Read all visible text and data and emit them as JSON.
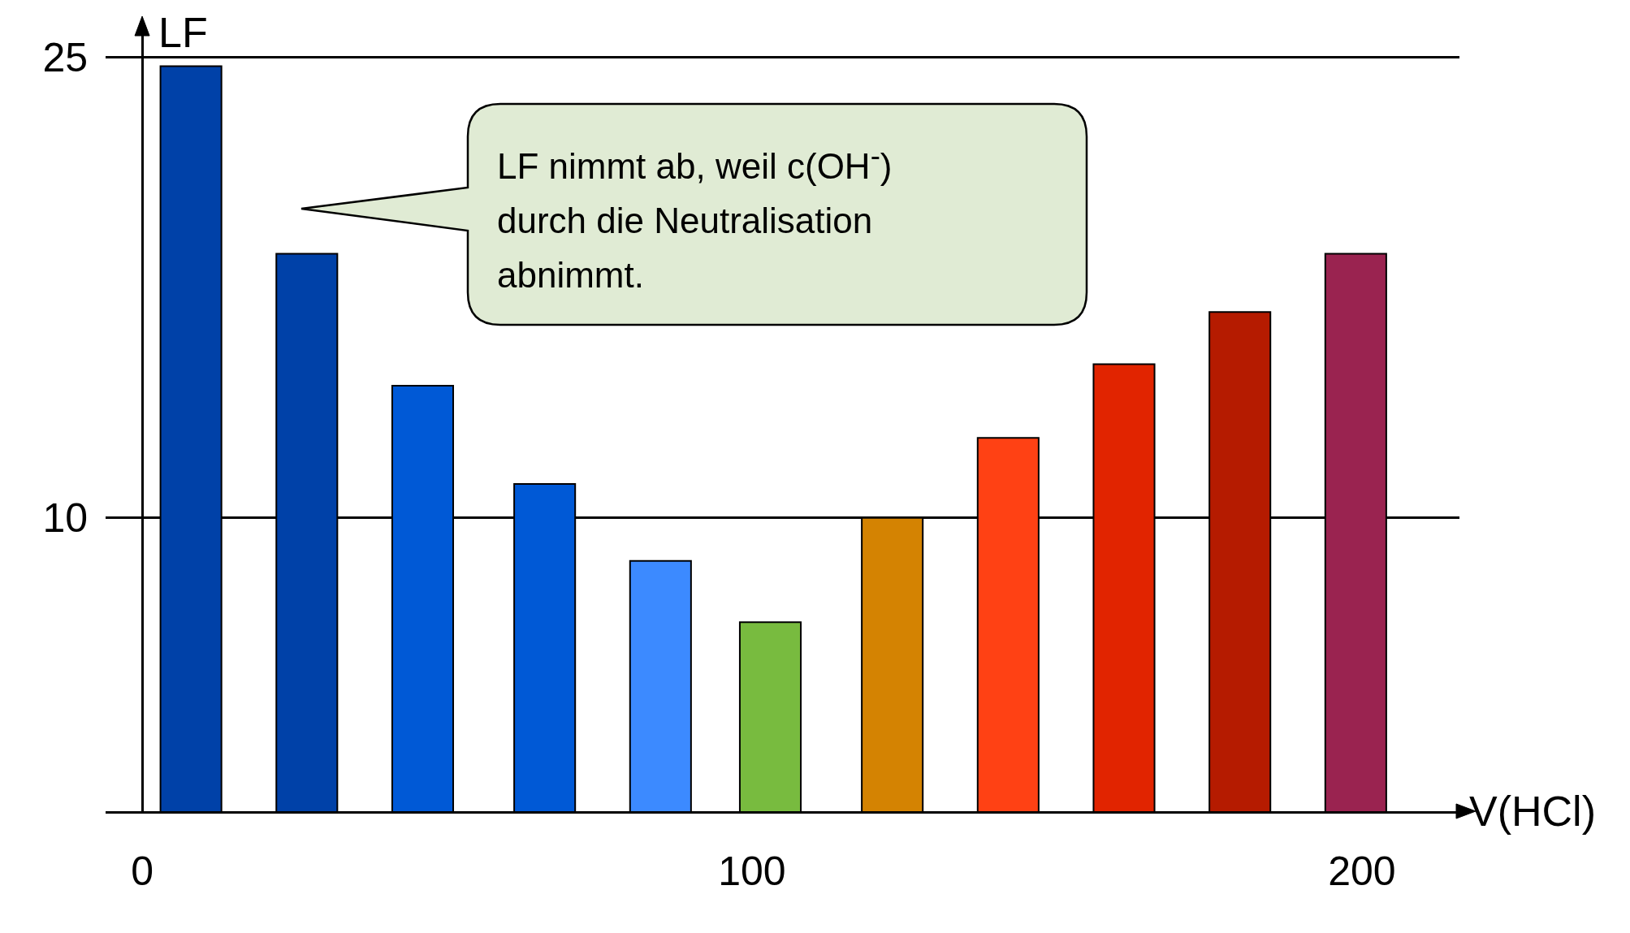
{
  "chart_data": {
    "type": "bar",
    "xlabel": "V(HCl)",
    "ylabel": "LF",
    "x": [
      8,
      27,
      46,
      66,
      85,
      103,
      123,
      142,
      161,
      180,
      199
    ],
    "values": [
      24.7,
      18.6,
      14.3,
      11.1,
      8.6,
      6.6,
      10,
      12.6,
      15,
      16.7,
      18.6
    ],
    "colors": [
      "#0041a8",
      "#0041a8",
      "#0059d6",
      "#0059d6",
      "#3c8aff",
      "#78bb3f",
      "#d48302",
      "#ff4114",
      "#e12400",
      "#b51b00",
      "#9a2350"
    ],
    "xlim": [
      -6,
      216
    ],
    "xticks": [
      0,
      100,
      200
    ],
    "ylim": [
      0.45,
      25.8
    ],
    "yticks": [
      10,
      25
    ],
    "grid": "y",
    "legend": false,
    "annotations": [
      "LF nimmt ab, weil c(OH$^{-}$)\ndurch die Neutralisation\nabnimmt."
    ]
  }
}
